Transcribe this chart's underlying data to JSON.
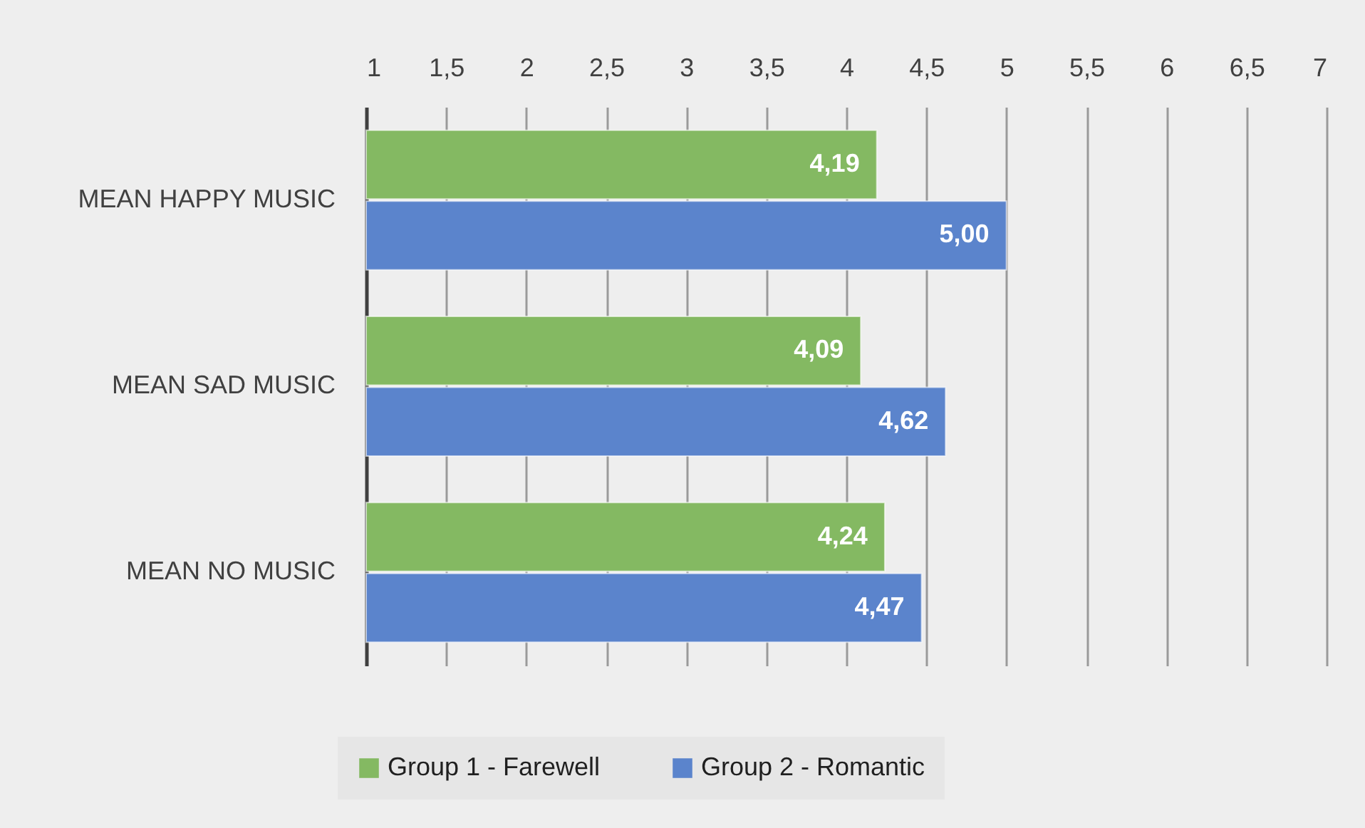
{
  "chart_data": {
    "type": "bar",
    "orientation": "horizontal",
    "categories": [
      "MEAN HAPPY MUSIC",
      "MEAN SAD MUSIC",
      "MEAN NO MUSIC"
    ],
    "series": [
      {
        "name": "Group 1 - Farewell",
        "color": "#84b962",
        "values": [
          4.19,
          4.09,
          4.24
        ],
        "value_labels": [
          "4,19",
          "4,09",
          "4,24"
        ]
      },
      {
        "name": "Group 2 - Romantic",
        "color": "#5b84cc",
        "values": [
          5.0,
          4.62,
          4.47
        ],
        "value_labels": [
          "5,00",
          "4,62",
          "4,47"
        ]
      }
    ],
    "xlim": [
      1,
      7
    ],
    "xticks": [
      1,
      {
        "value": 1.5,
        "label": "1,5"
      },
      2,
      {
        "value": 2.5,
        "label": "2,5"
      },
      3,
      {
        "value": 3.5,
        "label": "3,5"
      },
      4,
      {
        "value": 4.5,
        "label": "4,5"
      },
      5,
      {
        "value": 5.5,
        "label": "5,5"
      },
      6,
      {
        "value": 6.5,
        "label": "6,5"
      },
      7
    ],
    "grid": "x",
    "legend": "bottom"
  }
}
